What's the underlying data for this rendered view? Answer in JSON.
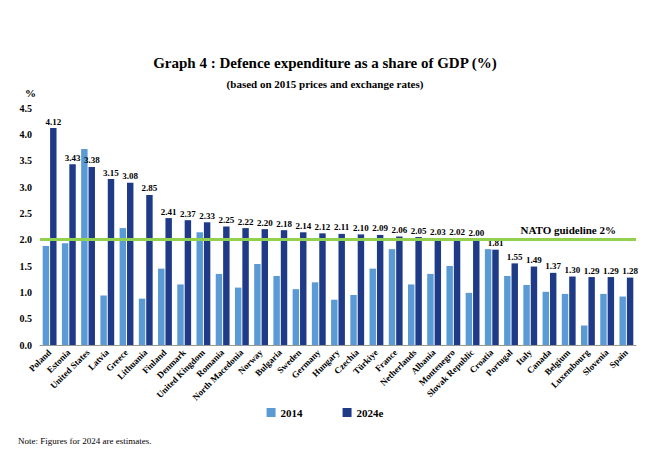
{
  "chart_data": {
    "type": "bar",
    "title": "Graph 4 : Defence expenditure as a share of GDP (%)",
    "subtitle": "(based on 2015 prices and exchange rates)",
    "y_label": "%",
    "note": "Note: Figures for 2024 are estimates.",
    "categories": [
      "Poland",
      "Estonia",
      "United States",
      "Latvia",
      "Greece",
      "Lithuania",
      "Finland",
      "Denmark",
      "United Kingdom",
      "Romania",
      "North Macedonia",
      "Norway",
      "Bulgaria",
      "Sweden",
      "Germany",
      "Hungary",
      "Czechia",
      "Türkiye",
      "France",
      "Netherlands",
      "Albania",
      "Montenegro",
      "Slovak Republic",
      "Croatia",
      "Portugal",
      "Italy",
      "Canada",
      "Belgium",
      "Luxembourg",
      "Slovenia",
      "Spain"
    ],
    "series": [
      {
        "name": "2014",
        "color": "#5b9bd5",
        "values": [
          1.88,
          1.93,
          3.72,
          0.94,
          2.22,
          0.88,
          1.45,
          1.15,
          2.14,
          1.35,
          1.09,
          1.54,
          1.31,
          1.06,
          1.19,
          0.86,
          0.95,
          1.45,
          1.82,
          1.15,
          1.35,
          1.5,
          0.99,
          1.82,
          1.31,
          1.14,
          1.01,
          0.97,
          0.37,
          0.97,
          0.92
        ]
      },
      {
        "name": "2024e",
        "color": "#1f3b87",
        "data_labels": true,
        "values": [
          4.12,
          3.43,
          3.38,
          3.15,
          3.08,
          2.85,
          2.41,
          2.37,
          2.33,
          2.25,
          2.22,
          2.2,
          2.18,
          2.14,
          2.12,
          2.11,
          2.1,
          2.09,
          2.06,
          2.05,
          2.03,
          2.02,
          2.0,
          1.81,
          1.55,
          1.49,
          1.37,
          1.3,
          1.29,
          1.29,
          1.28
        ],
        "value_labels": [
          "4.12",
          "3.43",
          "3.38",
          "3.15",
          "3.08",
          "2.85",
          "2.41",
          "2.37",
          "2.33",
          "2.25",
          "2.22",
          "2.20",
          "2.18",
          "2.14",
          "2.12",
          "2.11",
          "2.10",
          "2.09",
          "2.06",
          "2.05",
          "2.03",
          "2.02",
          "2.00",
          "1.81",
          "1.55",
          "1.49",
          "1.37",
          "1.30",
          "1.29",
          "1.29",
          "1.28"
        ]
      }
    ],
    "reference_line": {
      "value": 2,
      "label": "NATO guideline 2%",
      "color": "#92d050"
    },
    "ylim": [
      0,
      4.5
    ],
    "yticks": [
      {
        "value": 0,
        "label": "0.0"
      },
      {
        "value": 0.5,
        "label": "0.5"
      },
      {
        "value": 1,
        "label": "1.0"
      },
      {
        "value": 1.5,
        "label": "1.5"
      },
      {
        "value": 2,
        "label": "2.0"
      },
      {
        "value": 2.5,
        "label": "2.5"
      },
      {
        "value": 3,
        "label": "3.0"
      },
      {
        "value": 3.5,
        "label": "3.5"
      },
      {
        "value": 4,
        "label": "4.0"
      },
      {
        "value": 4.5,
        "label": "4.5"
      }
    ],
    "grid": false,
    "legend": "bottom"
  }
}
